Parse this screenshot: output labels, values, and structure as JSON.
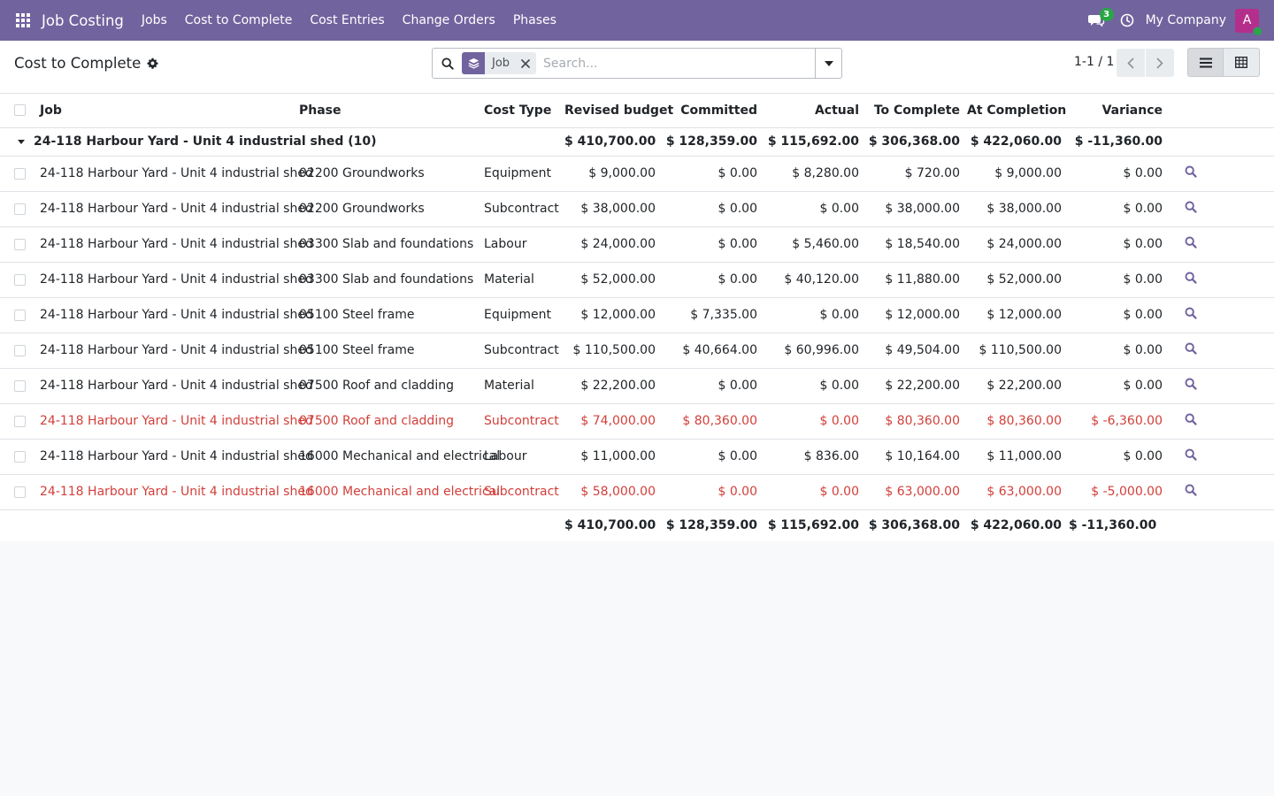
{
  "navbar": {
    "app_name": "Job Costing",
    "menu": [
      "Jobs",
      "Cost to Complete",
      "Cost Entries",
      "Change Orders",
      "Phases"
    ],
    "chat_count": "3",
    "company": "My Company",
    "avatar_initial": "A",
    "color": "#71639e"
  },
  "control_panel": {
    "title": "Cost to Complete",
    "search": {
      "facet_label": "Job",
      "placeholder": "Search..."
    },
    "pager": "1-1 / 1"
  },
  "table": {
    "headers": {
      "job": "Job",
      "phase": "Phase",
      "cost_type": "Cost Type",
      "revised_budget": "Revised budget",
      "committed": "Committed",
      "actual": "Actual",
      "to_complete": "To Complete",
      "at_completion": "At Completion",
      "variance": "Variance"
    },
    "group": {
      "label": "24-118 Harbour Yard - Unit 4 industrial shed (10)",
      "revised_budget": "$ 410,700.00",
      "committed": "$ 128,359.00",
      "actual": "$ 115,692.00",
      "to_complete": "$ 306,368.00",
      "at_completion": "$ 422,060.00",
      "variance": "$ -11,360.00"
    },
    "rows": [
      {
        "job": "24-118 Harbour Yard - Unit 4 industrial shed",
        "phase": "02200 Groundworks",
        "cost_type": "Equipment",
        "revised_budget": "$ 9,000.00",
        "committed": "$ 0.00",
        "actual": "$ 8,280.00",
        "to_complete": "$ 720.00",
        "at_completion": "$ 9,000.00",
        "variance": "$ 0.00"
      },
      {
        "job": "24-118 Harbour Yard - Unit 4 industrial shed",
        "phase": "02200 Groundworks",
        "cost_type": "Subcontract",
        "revised_budget": "$ 38,000.00",
        "committed": "$ 0.00",
        "actual": "$ 0.00",
        "to_complete": "$ 38,000.00",
        "at_completion": "$ 38,000.00",
        "variance": "$ 0.00"
      },
      {
        "job": "24-118 Harbour Yard - Unit 4 industrial shed",
        "phase": "03300 Slab and foundations",
        "cost_type": "Labour",
        "revised_budget": "$ 24,000.00",
        "committed": "$ 0.00",
        "actual": "$ 5,460.00",
        "to_complete": "$ 18,540.00",
        "at_completion": "$ 24,000.00",
        "variance": "$ 0.00"
      },
      {
        "job": "24-118 Harbour Yard - Unit 4 industrial shed",
        "phase": "03300 Slab and foundations",
        "cost_type": "Material",
        "revised_budget": "$ 52,000.00",
        "committed": "$ 0.00",
        "actual": "$ 40,120.00",
        "to_complete": "$ 11,880.00",
        "at_completion": "$ 52,000.00",
        "variance": "$ 0.00"
      },
      {
        "job": "24-118 Harbour Yard - Unit 4 industrial shed",
        "phase": "05100 Steel frame",
        "cost_type": "Equipment",
        "revised_budget": "$ 12,000.00",
        "committed": "$ 7,335.00",
        "actual": "$ 0.00",
        "to_complete": "$ 12,000.00",
        "at_completion": "$ 12,000.00",
        "variance": "$ 0.00"
      },
      {
        "job": "24-118 Harbour Yard - Unit 4 industrial shed",
        "phase": "05100 Steel frame",
        "cost_type": "Subcontract",
        "revised_budget": "$ 110,500.00",
        "committed": "$ 40,664.00",
        "actual": "$ 60,996.00",
        "to_complete": "$ 49,504.00",
        "at_completion": "$ 110,500.00",
        "variance": "$ 0.00"
      },
      {
        "job": "24-118 Harbour Yard - Unit 4 industrial shed",
        "phase": "07500 Roof and cladding",
        "cost_type": "Material",
        "revised_budget": "$ 22,200.00",
        "committed": "$ 0.00",
        "actual": "$ 0.00",
        "to_complete": "$ 22,200.00",
        "at_completion": "$ 22,200.00",
        "variance": "$ 0.00"
      },
      {
        "job": "24-118 Harbour Yard - Unit 4 industrial shed",
        "phase": "07500 Roof and cladding",
        "cost_type": "Subcontract",
        "revised_budget": "$ 74,000.00",
        "committed": "$ 80,360.00",
        "actual": "$ 0.00",
        "to_complete": "$ 80,360.00",
        "at_completion": "$ 80,360.00",
        "variance": "$ -6,360.00",
        "danger": true
      },
      {
        "job": "24-118 Harbour Yard - Unit 4 industrial shed",
        "phase": "16000 Mechanical and electrical",
        "cost_type": "Labour",
        "revised_budget": "$ 11,000.00",
        "committed": "$ 0.00",
        "actual": "$ 836.00",
        "to_complete": "$ 10,164.00",
        "at_completion": "$ 11,000.00",
        "variance": "$ 0.00"
      },
      {
        "job": "24-118 Harbour Yard - Unit 4 industrial shed",
        "phase": "16000 Mechanical and electrical",
        "cost_type": "Subcontract",
        "revised_budget": "$ 58,000.00",
        "committed": "$ 0.00",
        "actual": "$ 0.00",
        "to_complete": "$ 63,000.00",
        "at_completion": "$ 63,000.00",
        "variance": "$ -5,000.00",
        "danger": true
      }
    ],
    "totals": {
      "revised_budget": "$ 410,700.00",
      "committed": "$ 128,359.00",
      "actual": "$ 115,692.00",
      "to_complete": "$ 306,368.00",
      "at_completion": "$ 422,060.00",
      "variance": "$ -11,360.00"
    }
  },
  "icons": {
    "apps": "apps-grid-icon",
    "chat": "chat-icon",
    "activity": "clock-icon",
    "settings": "gear-icon",
    "search": "search-icon",
    "facet": "layers-icon",
    "open_row": "magnifier-icon"
  },
  "colors": {
    "brand": "#71639e",
    "danger": "#d23f3a",
    "avatar": "#b42f8c",
    "badge": "#28a745"
  }
}
